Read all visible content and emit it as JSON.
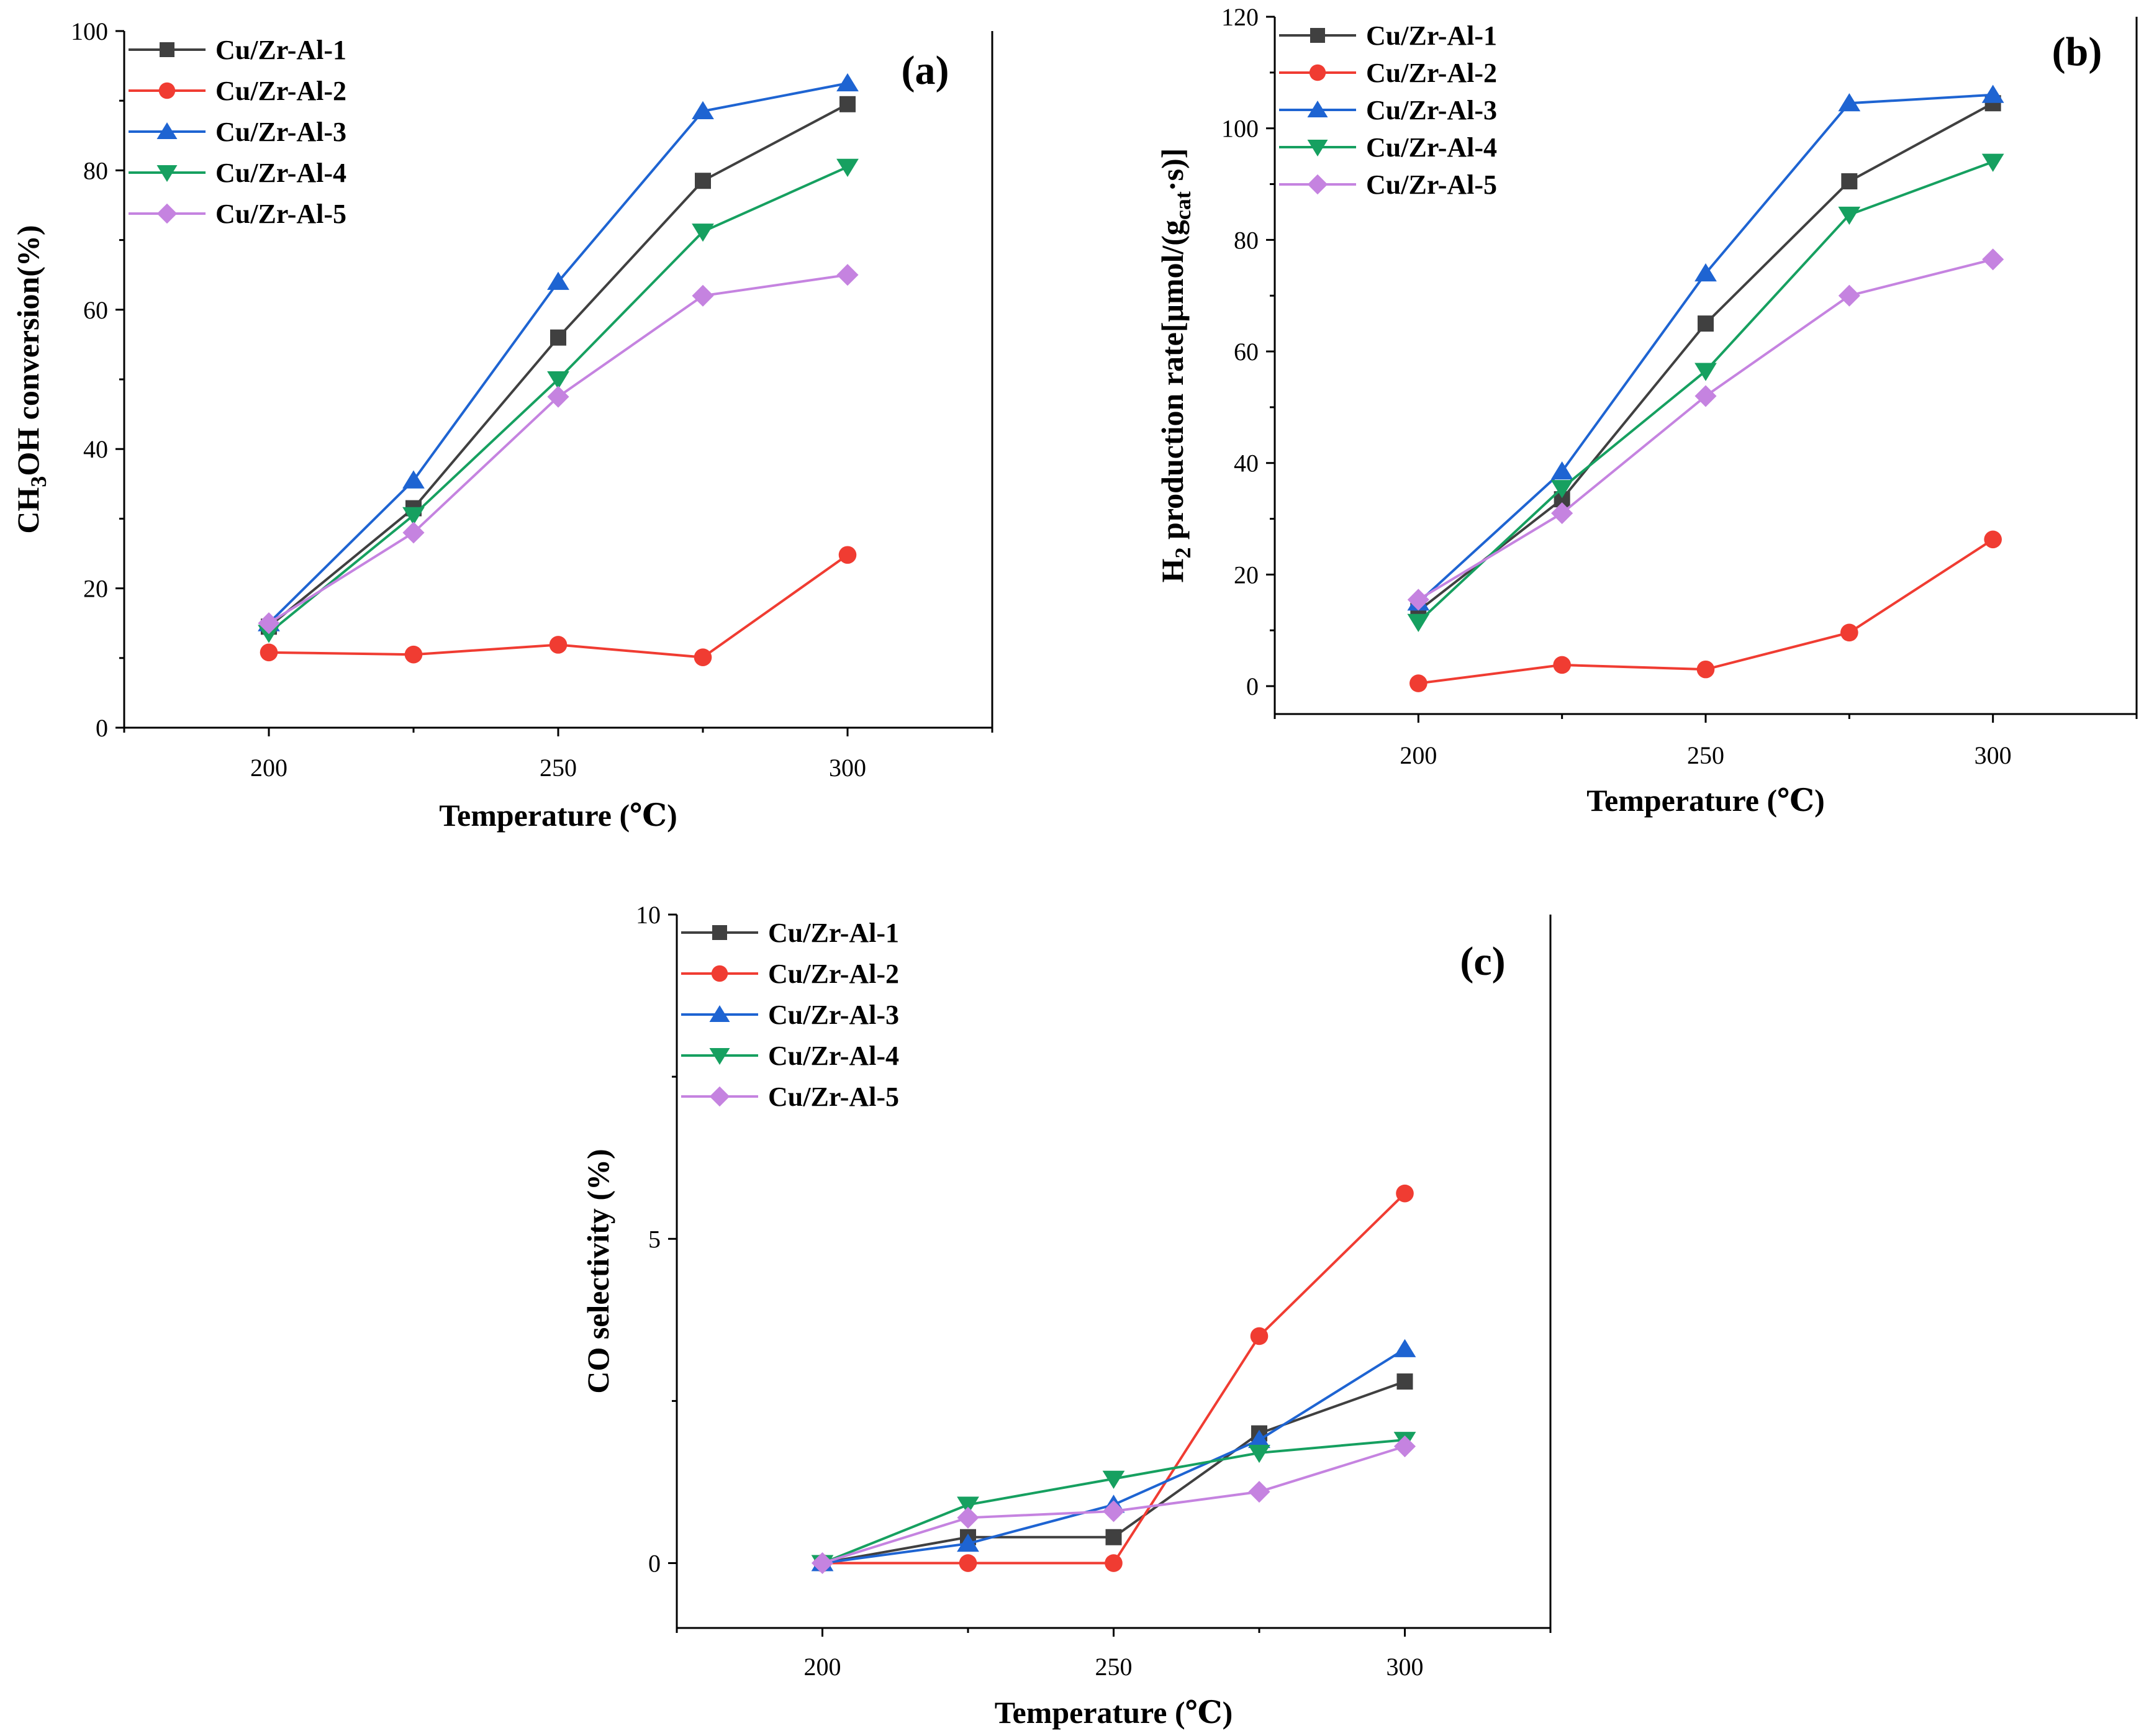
{
  "chart_data": [
    {
      "type": "line",
      "panel_label": "(a)",
      "x": [
        200,
        225,
        250,
        275,
        300
      ],
      "xlim": [
        175,
        325
      ],
      "ylim": [
        0,
        100
      ],
      "xticks": [
        "200",
        "250",
        "300"
      ],
      "yticks": [
        "0",
        "20",
        "40",
        "60",
        "80",
        "100"
      ],
      "xlabel": "Temperature (℃)",
      "ylabel": "CH3OH conversion(%)",
      "ylabel_parts": {
        "base": "CH",
        "sub": "3",
        "rest": "OH conversion(%)"
      },
      "legend_position": "top-left",
      "series": [
        {
          "name": "Cu/Zr-Al-1",
          "color": "#404040",
          "marker": "square",
          "values": [
            14.5,
            31.5,
            56,
            78.5,
            89.5
          ]
        },
        {
          "name": "Cu/Zr-Al-2",
          "color": "#f03c32",
          "marker": "circle",
          "values": [
            10.8,
            10.5,
            11.9,
            10.1,
            24.8
          ]
        },
        {
          "name": "Cu/Zr-Al-3",
          "color": "#1e64d2",
          "marker": "triangle-up",
          "values": [
            15,
            35.5,
            64,
            88.5,
            92.5
          ]
        },
        {
          "name": "Cu/Zr-Al-4",
          "color": "#16a060",
          "marker": "triangle-down",
          "values": [
            13.6,
            30.5,
            50,
            71.2,
            80.5
          ]
        },
        {
          "name": "Cu/Zr-Al-5",
          "color": "#c583e0",
          "marker": "diamond",
          "values": [
            15,
            28,
            47.5,
            62,
            65
          ]
        }
      ]
    },
    {
      "type": "line",
      "panel_label": "(b)",
      "x": [
        200,
        225,
        250,
        275,
        300
      ],
      "xlim": [
        175,
        325
      ],
      "ylim": [
        -5,
        120
      ],
      "xticks": [
        "200",
        "250",
        "300"
      ],
      "yticks": [
        "0",
        "20",
        "40",
        "60",
        "80",
        "100",
        "120"
      ],
      "xlabel": "Temperature (℃)",
      "ylabel": "H2 production rate[μmol/(gcat·s)]",
      "ylabel_parts": {
        "base": "H",
        "sub": "2",
        "mid": " production rate[μmol/(g",
        "sub2": "cat",
        "rest": "·s)]"
      },
      "legend_position": "top-left",
      "series": [
        {
          "name": "Cu/Zr-Al-1",
          "color": "#404040",
          "marker": "square",
          "values": [
            13.5,
            33.5,
            65,
            90.5,
            104.5
          ]
        },
        {
          "name": "Cu/Zr-Al-2",
          "color": "#f03c32",
          "marker": "circle",
          "values": [
            0.5,
            3.8,
            3,
            9.6,
            26.3
          ]
        },
        {
          "name": "Cu/Zr-Al-3",
          "color": "#1e64d2",
          "marker": "triangle-up",
          "values": [
            15,
            38.5,
            74,
            104.5,
            106
          ]
        },
        {
          "name": "Cu/Zr-Al-4",
          "color": "#16a060",
          "marker": "triangle-down",
          "values": [
            11.5,
            35.5,
            56.5,
            84.5,
            94
          ]
        },
        {
          "name": "Cu/Zr-Al-5",
          "color": "#c583e0",
          "marker": "diamond",
          "values": [
            15.5,
            31,
            52,
            70,
            76.5
          ]
        }
      ]
    },
    {
      "type": "line",
      "panel_label": "(c)",
      "x": [
        200,
        225,
        250,
        275,
        300
      ],
      "xlim": [
        175,
        325
      ],
      "ylim": [
        -1,
        10
      ],
      "xticks": [
        "200",
        "250",
        "300"
      ],
      "yticks": [
        "0",
        "5",
        "10"
      ],
      "xlabel": "Temperature (℃)",
      "ylabel": "CO selectivity (%)",
      "ylabel_parts": {
        "base": "CO selectivity (%)"
      },
      "legend_position": "top-left",
      "series": [
        {
          "name": "Cu/Zr-Al-1",
          "color": "#404040",
          "marker": "square",
          "values": [
            0,
            0.4,
            0.4,
            2,
            2.8
          ]
        },
        {
          "name": "Cu/Zr-Al-2",
          "color": "#f03c32",
          "marker": "circle",
          "values": [
            0,
            0,
            0,
            3.5,
            5.7
          ]
        },
        {
          "name": "Cu/Zr-Al-3",
          "color": "#1e64d2",
          "marker": "triangle-up",
          "values": [
            0,
            0.3,
            0.9,
            1.9,
            3.3
          ]
        },
        {
          "name": "Cu/Zr-Al-4",
          "color": "#16a060",
          "marker": "triangle-down",
          "values": [
            0,
            0.9,
            1.3,
            1.7,
            1.9
          ]
        },
        {
          "name": "Cu/Zr-Al-5",
          "color": "#c583e0",
          "marker": "diamond",
          "values": [
            0,
            0.7,
            0.8,
            1.1,
            1.8
          ]
        }
      ]
    }
  ]
}
